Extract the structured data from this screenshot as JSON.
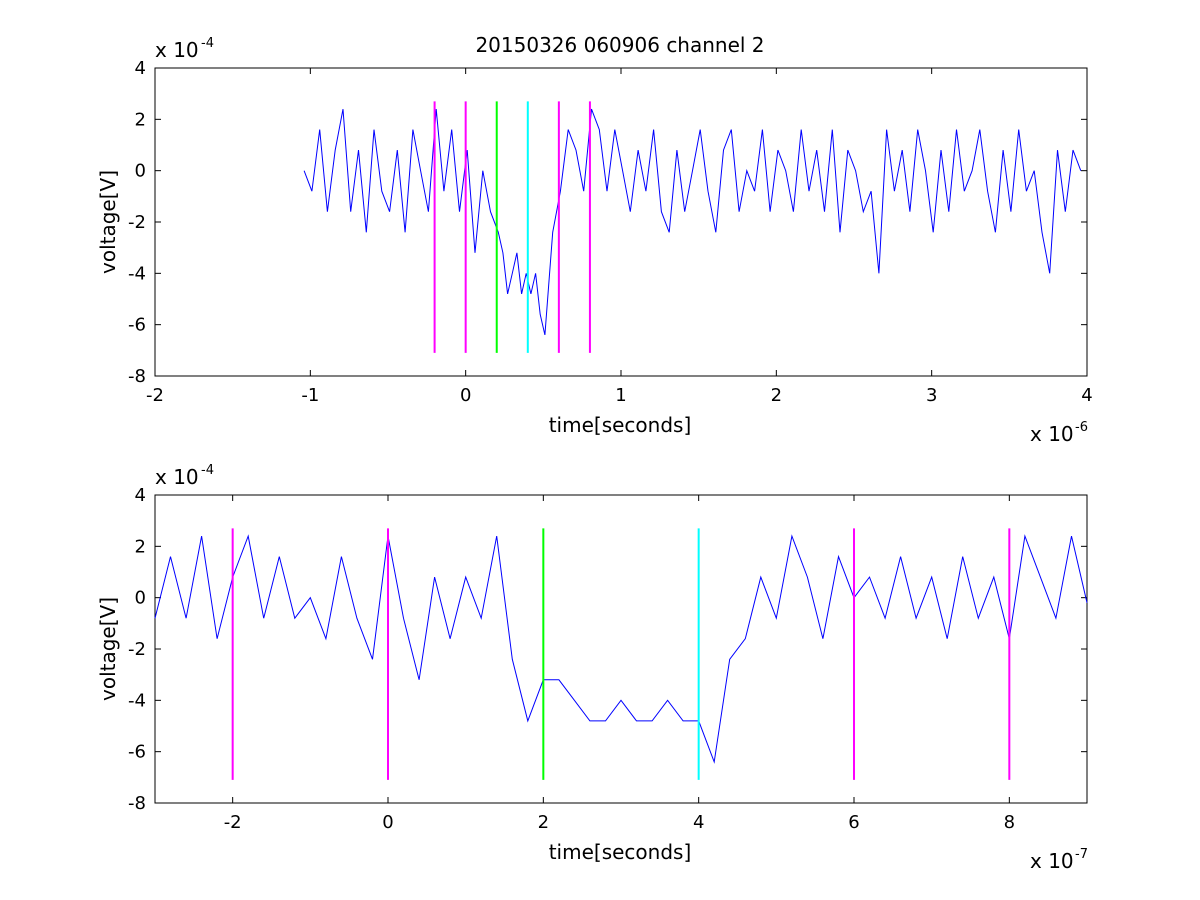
{
  "chart_data": [
    {
      "type": "line",
      "title": "20150326 060906 channel 2",
      "xlabel": "time[seconds]",
      "ylabel": "voltage[V]",
      "x_exponent_label": "x 10",
      "x_exponent_power": "-6",
      "y_exponent_label": "x 10",
      "y_exponent_power": "-4",
      "xlim": [
        -2,
        4
      ],
      "ylim": [
        -8,
        4
      ],
      "xticks": [
        -2,
        -1,
        0,
        1,
        2,
        3,
        4
      ],
      "xtick_labels": [
        "-2",
        "-1",
        "0",
        "1",
        "2",
        "3",
        "4"
      ],
      "yticks": [
        -8,
        -6,
        -4,
        -2,
        0,
        2,
        4
      ],
      "ytick_labels": [
        "-8",
        "-6",
        "-4",
        "-2",
        "0",
        "2",
        "4"
      ],
      "grid": false,
      "series": [
        {
          "color": "#0000ff",
          "x": [
            -1.04,
            -0.99,
            -0.94,
            -0.89,
            -0.84,
            -0.79,
            -0.74,
            -0.69,
            -0.64,
            -0.59,
            -0.54,
            -0.49,
            -0.44,
            -0.39,
            -0.34,
            -0.29,
            -0.24,
            -0.19,
            -0.14,
            -0.09,
            -0.04,
            0.01,
            0.06,
            0.11,
            0.16,
            0.21,
            0.24,
            0.27,
            0.3,
            0.33,
            0.36,
            0.39,
            0.42,
            0.45,
            0.48,
            0.51,
            0.56,
            0.61,
            0.66,
            0.71,
            0.76,
            0.81,
            0.86,
            0.91,
            0.96,
            1.01,
            1.06,
            1.11,
            1.16,
            1.21,
            1.26,
            1.31,
            1.36,
            1.41,
            1.46,
            1.51,
            1.56,
            1.61,
            1.66,
            1.71,
            1.76,
            1.81,
            1.86,
            1.91,
            1.96,
            2.01,
            2.06,
            2.11,
            2.16,
            2.21,
            2.26,
            2.31,
            2.36,
            2.41,
            2.46,
            2.51,
            2.56,
            2.61,
            2.66,
            2.71,
            2.76,
            2.81,
            2.86,
            2.91,
            2.96,
            3.01,
            3.06,
            3.11,
            3.16,
            3.21,
            3.26,
            3.31,
            3.36,
            3.41,
            3.46,
            3.51,
            3.56,
            3.61,
            3.66,
            3.71,
            3.76,
            3.81,
            3.86,
            3.91,
            3.96
          ],
          "y": [
            0,
            -0.8,
            1.6,
            -1.6,
            0.8,
            2.4,
            -1.6,
            0.8,
            -2.4,
            1.6,
            -0.8,
            -1.6,
            0.8,
            -2.4,
            1.6,
            0,
            -1.6,
            2.4,
            -0.8,
            1.6,
            -1.6,
            0.8,
            -3.2,
            0,
            -1.6,
            -2.4,
            -3.2,
            -4.8,
            -4,
            -3.2,
            -4.8,
            -4,
            -4.8,
            -4,
            -5.6,
            -6.4,
            -2.4,
            -0.8,
            1.6,
            0.8,
            -0.8,
            2.4,
            1.6,
            -0.8,
            1.6,
            0,
            -1.6,
            0.8,
            -0.8,
            1.6,
            -1.6,
            -2.4,
            0.8,
            -1.6,
            0,
            1.6,
            -0.8,
            -2.4,
            0.8,
            1.6,
            -1.6,
            0,
            -0.8,
            1.6,
            -1.6,
            0.8,
            0,
            -1.6,
            1.6,
            -0.8,
            0.8,
            -1.6,
            1.6,
            -2.4,
            0.8,
            0,
            -1.6,
            -0.8,
            -4,
            1.6,
            -0.8,
            0.8,
            -1.6,
            1.6,
            0,
            -2.4,
            0.8,
            -1.6,
            1.6,
            -0.8,
            0,
            1.6,
            -0.8,
            -2.4,
            0.8,
            -1.6,
            1.6,
            -0.8,
            0,
            -2.4,
            -4,
            0.8,
            -1.6,
            0.8,
            0
          ]
        }
      ],
      "markers": [
        {
          "x": -0.2,
          "color": "#ff00ff"
        },
        {
          "x": 0.0,
          "color": "#ff00ff"
        },
        {
          "x": 0.2,
          "color": "#00ff00"
        },
        {
          "x": 0.4,
          "color": "#00ffff"
        },
        {
          "x": 0.6,
          "color": "#ff00ff"
        },
        {
          "x": 0.8,
          "color": "#ff00ff"
        }
      ],
      "marker_ylim": [
        -7.1,
        2.7
      ]
    },
    {
      "type": "line",
      "title": "",
      "xlabel": "time[seconds]",
      "ylabel": "voltage[V]",
      "x_exponent_label": "x 10",
      "x_exponent_power": "-7",
      "y_exponent_label": "x 10",
      "y_exponent_power": "-4",
      "xlim": [
        -3,
        9
      ],
      "ylim": [
        -8,
        4
      ],
      "xticks": [
        -2,
        0,
        2,
        4,
        6,
        8
      ],
      "xtick_labels": [
        "-2",
        "0",
        "2",
        "4",
        "6",
        "8"
      ],
      "yticks": [
        -8,
        -6,
        -4,
        -2,
        0,
        2,
        4
      ],
      "ytick_labels": [
        "-8",
        "-6",
        "-4",
        "-2",
        "0",
        "2",
        "4"
      ],
      "grid": false,
      "series": [
        {
          "color": "#0000ff",
          "x": [
            -3,
            -2.8,
            -2.6,
            -2.4,
            -2.2,
            -2,
            -1.8,
            -1.6,
            -1.4,
            -1.2,
            -1,
            -0.8,
            -0.6,
            -0.4,
            -0.2,
            0,
            0.2,
            0.4,
            0.6,
            0.8,
            1,
            1.2,
            1.4,
            1.6,
            1.8,
            2,
            2.2,
            2.4,
            2.6,
            2.8,
            3,
            3.2,
            3.4,
            3.6,
            3.8,
            4,
            4.2,
            4.4,
            4.6,
            4.8,
            5,
            5.2,
            5.4,
            5.6,
            5.8,
            6,
            6.2,
            6.4,
            6.6,
            6.8,
            7,
            7.2,
            7.4,
            7.6,
            7.8,
            8,
            8.2,
            8.4,
            8.6,
            8.8,
            9
          ],
          "y": [
            -0.8,
            1.6,
            -0.8,
            2.4,
            -1.6,
            0.8,
            2.4,
            -0.8,
            1.6,
            -0.8,
            0,
            -1.6,
            1.6,
            -0.8,
            -2.4,
            2.4,
            -0.8,
            -3.2,
            0.8,
            -1.6,
            0.8,
            -0.8,
            2.4,
            -2.4,
            -4.8,
            -3.2,
            -3.2,
            -4,
            -4.8,
            -4.8,
            -4,
            -4.8,
            -4.8,
            -4,
            -4.8,
            -4.8,
            -6.4,
            -2.4,
            -1.6,
            0.8,
            -0.8,
            2.4,
            0.8,
            -1.6,
            1.6,
            0,
            0.8,
            -0.8,
            1.6,
            -0.8,
            0.8,
            -1.6,
            1.6,
            -0.8,
            0.8,
            -1.6,
            2.4,
            0.8,
            -0.8,
            2.4,
            -0.2
          ]
        }
      ],
      "markers": [
        {
          "x": -2,
          "color": "#ff00ff"
        },
        {
          "x": 0,
          "color": "#ff00ff"
        },
        {
          "x": 2,
          "color": "#00ff00"
        },
        {
          "x": 4,
          "color": "#00ffff"
        },
        {
          "x": 6,
          "color": "#ff00ff"
        },
        {
          "x": 8,
          "color": "#ff00ff"
        }
      ],
      "marker_ylim": [
        -7.1,
        2.7
      ]
    }
  ]
}
